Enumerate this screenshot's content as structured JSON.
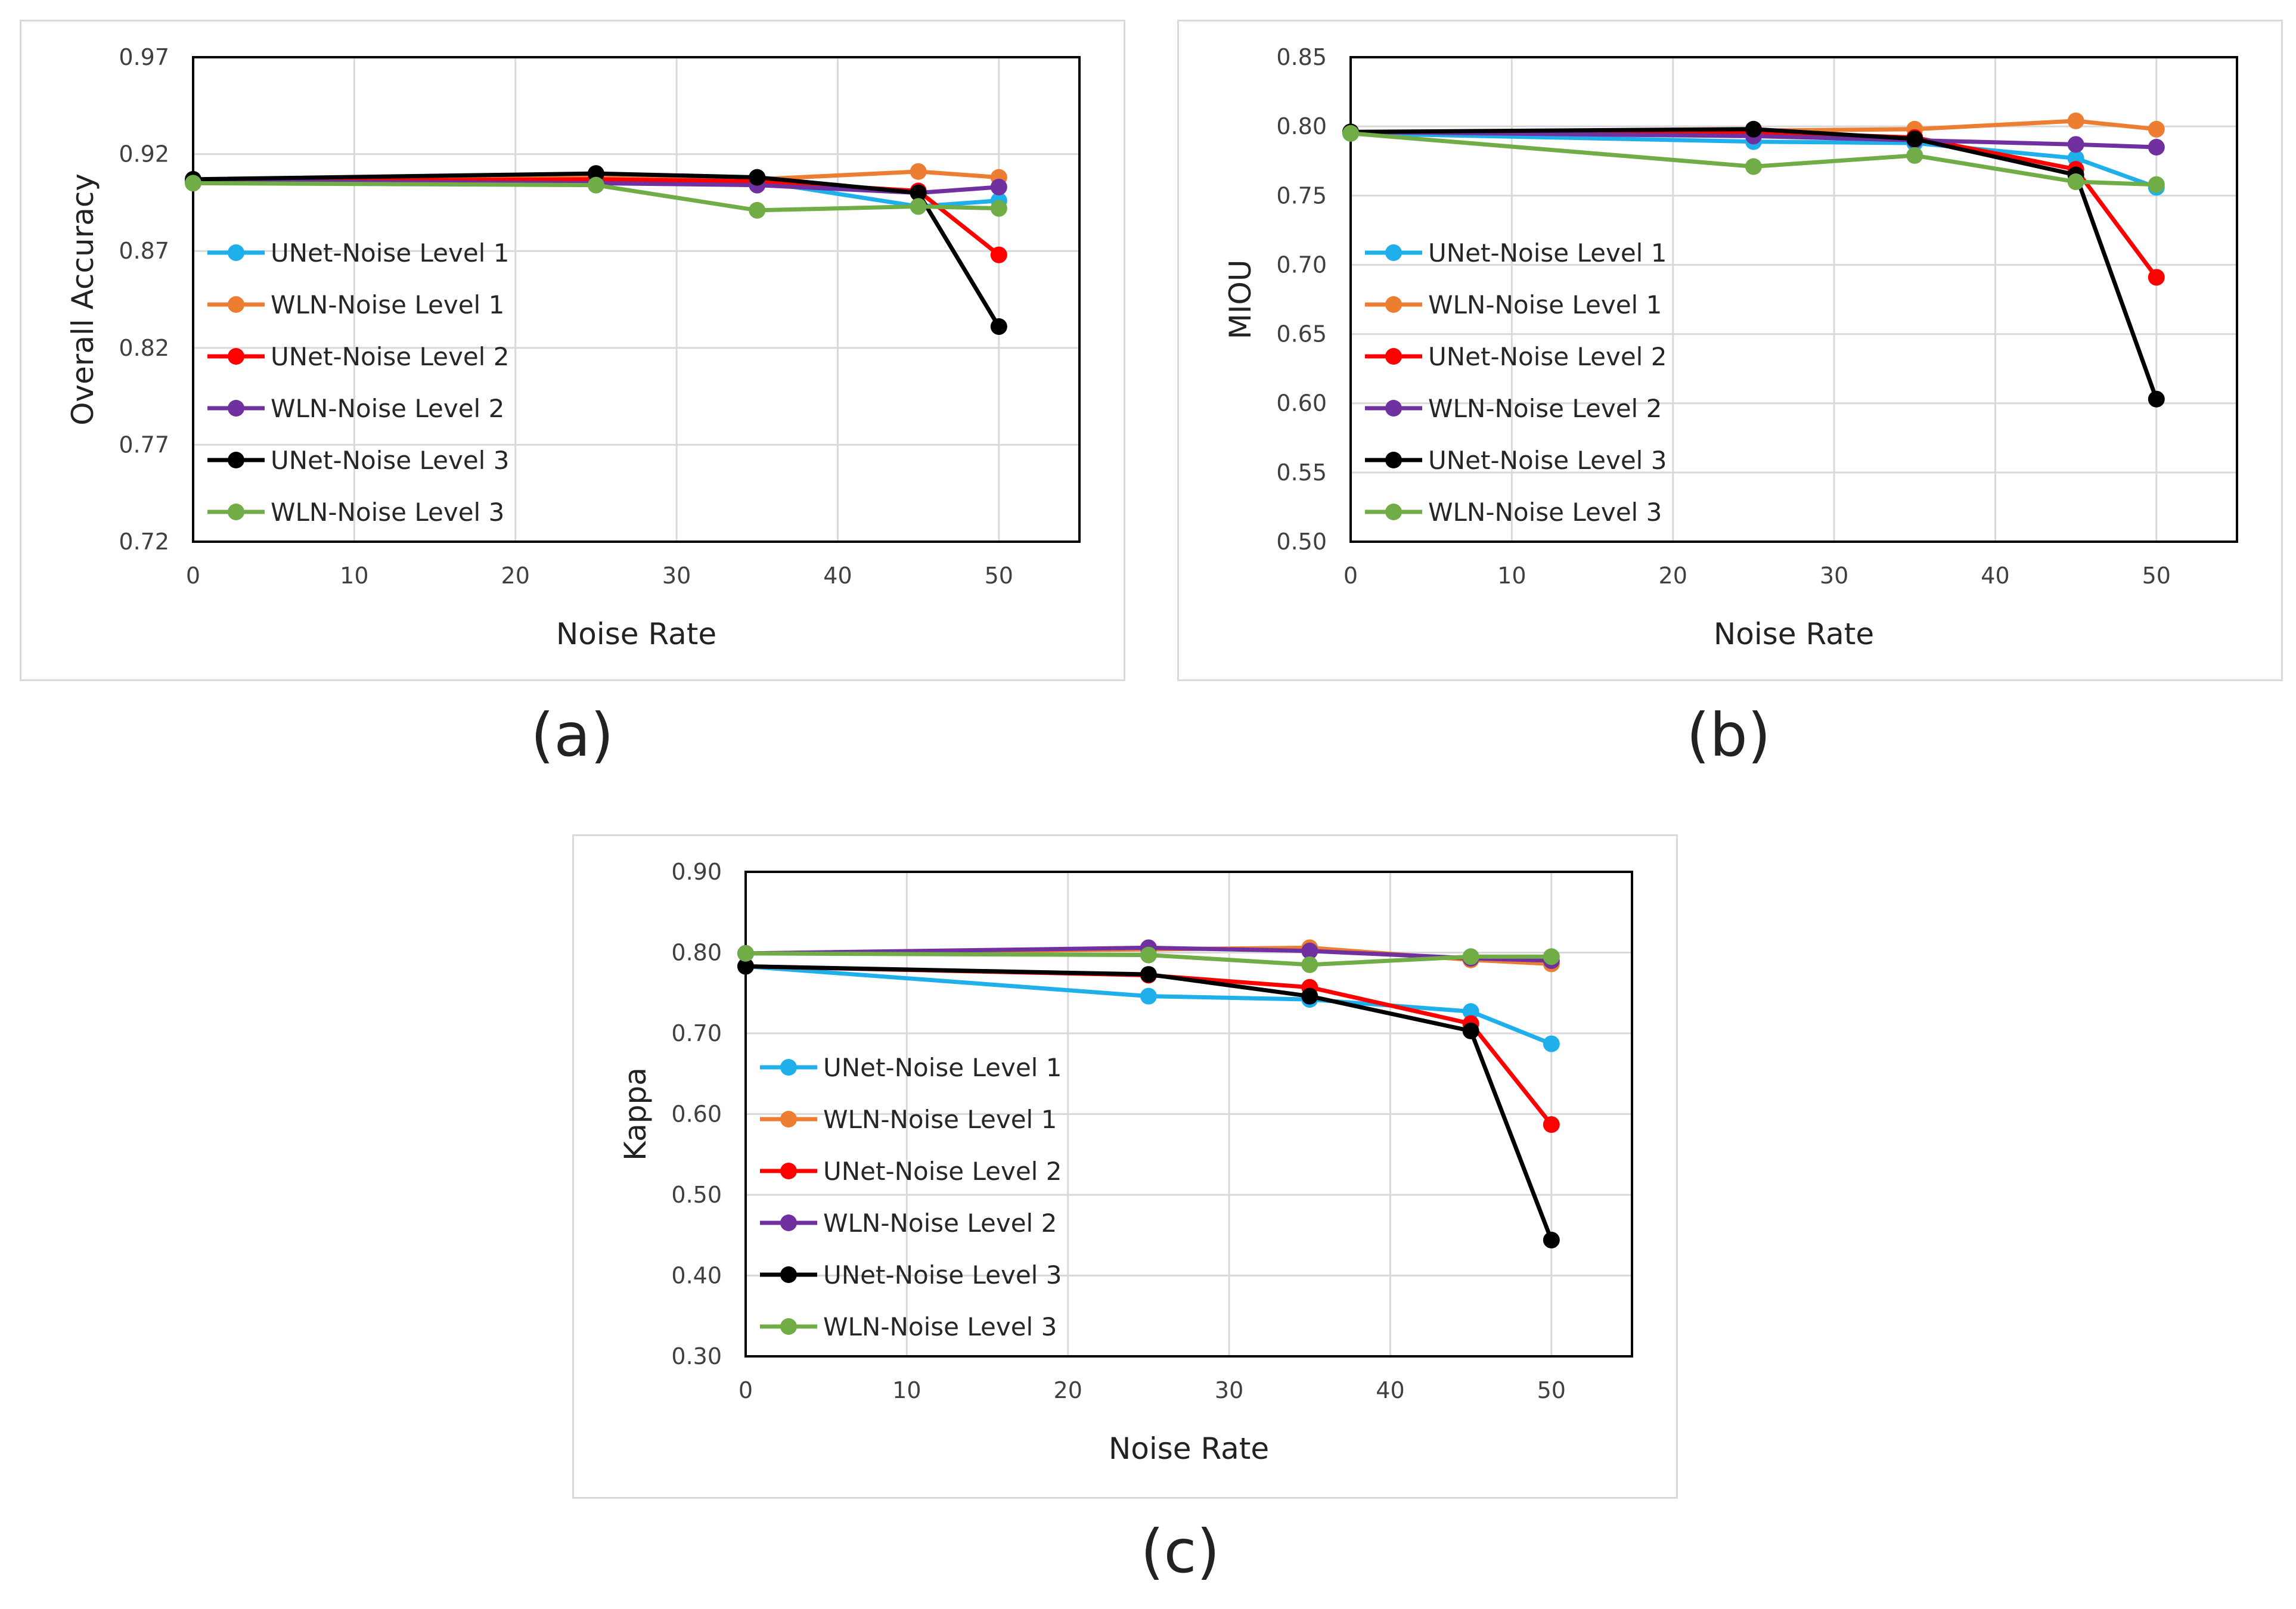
{
  "chart_data": [
    {
      "type": "line",
      "id": "a",
      "caption": "(a)",
      "xlabel": "Noise Rate",
      "ylabel": "Overall Accuracy",
      "xlim": [
        0,
        55
      ],
      "ylim": [
        0.72,
        0.97
      ],
      "xticks": [
        "0",
        "10",
        "20",
        "30",
        "40",
        "50"
      ],
      "yticks": [
        "0.72",
        "0.77",
        "0.82",
        "0.87",
        "0.92",
        "0.97"
      ],
      "grid": true,
      "legend": "left",
      "x": [
        0,
        25,
        35,
        45,
        50
      ],
      "series": [
        {
          "name": "UNet-Noise Level 1",
          "color": "#1fb0ec",
          "values": [
            0.906,
            0.907,
            0.906,
            0.893,
            0.896
          ]
        },
        {
          "name": "WLN-Noise Level 1",
          "color": "#ed7d31",
          "values": [
            0.906,
            0.908,
            0.907,
            0.911,
            0.908
          ]
        },
        {
          "name": "UNet-Noise Level 2",
          "color": "#ff0000",
          "values": [
            0.906,
            0.907,
            0.906,
            0.901,
            0.868
          ]
        },
        {
          "name": "WLN-Noise Level 2",
          "color": "#7030a0",
          "values": [
            0.906,
            0.905,
            0.904,
            0.9,
            0.903
          ]
        },
        {
          "name": "UNet-Noise Level 3",
          "color": "#000000",
          "values": [
            0.907,
            0.91,
            0.908,
            0.9,
            0.831
          ]
        },
        {
          "name": "WLN-Noise Level 3",
          "color": "#70ad47",
          "values": [
            0.905,
            0.904,
            0.891,
            0.893,
            0.892
          ]
        }
      ]
    },
    {
      "type": "line",
      "id": "b",
      "caption": "(b)",
      "xlabel": "Noise Rate",
      "ylabel": "MIOU",
      "xlim": [
        0,
        55
      ],
      "ylim": [
        0.5,
        0.85
      ],
      "xticks": [
        "0",
        "10",
        "20",
        "30",
        "40",
        "50"
      ],
      "yticks": [
        "0.50",
        "0.55",
        "0.60",
        "0.65",
        "0.70",
        "0.75",
        "0.80",
        "0.85"
      ],
      "grid": true,
      "legend": "left",
      "x": [
        0,
        25,
        35,
        45,
        50
      ],
      "series": [
        {
          "name": "UNet-Noise Level 1",
          "color": "#1fb0ec",
          "values": [
            0.795,
            0.789,
            0.788,
            0.777,
            0.756
          ]
        },
        {
          "name": "WLN-Noise Level 1",
          "color": "#ed7d31",
          "values": [
            0.796,
            0.797,
            0.798,
            0.804,
            0.798
          ]
        },
        {
          "name": "UNet-Noise Level 2",
          "color": "#ff0000",
          "values": [
            0.796,
            0.796,
            0.792,
            0.769,
            0.691
          ]
        },
        {
          "name": "WLN-Noise Level 2",
          "color": "#7030a0",
          "values": [
            0.796,
            0.793,
            0.79,
            0.787,
            0.785
          ]
        },
        {
          "name": "UNet-Noise Level 3",
          "color": "#000000",
          "values": [
            0.796,
            0.798,
            0.791,
            0.765,
            0.603
          ]
        },
        {
          "name": "WLN-Noise Level 3",
          "color": "#70ad47",
          "values": [
            0.795,
            0.771,
            0.779,
            0.76,
            0.758
          ]
        }
      ]
    },
    {
      "type": "line",
      "id": "c",
      "caption": "(c)",
      "xlabel": "Noise Rate",
      "ylabel": "Kappa",
      "xlim": [
        0,
        55
      ],
      "ylim": [
        0.3,
        0.9
      ],
      "xticks": [
        "0",
        "10",
        "20",
        "30",
        "40",
        "50"
      ],
      "yticks": [
        "0.30",
        "0.40",
        "0.50",
        "0.60",
        "0.70",
        "0.80",
        "0.90"
      ],
      "grid": true,
      "legend": "left",
      "x": [
        0,
        25,
        35,
        45,
        50
      ],
      "series": [
        {
          "name": "UNet-Noise Level 1",
          "color": "#1fb0ec",
          "values": [
            0.783,
            0.746,
            0.742,
            0.727,
            0.687
          ]
        },
        {
          "name": "WLN-Noise Level 1",
          "color": "#ed7d31",
          "values": [
            0.799,
            0.804,
            0.806,
            0.791,
            0.786
          ]
        },
        {
          "name": "UNet-Noise Level 2",
          "color": "#ff0000",
          "values": [
            0.783,
            0.772,
            0.757,
            0.712,
            0.587
          ]
        },
        {
          "name": "WLN-Noise Level 2",
          "color": "#7030a0",
          "values": [
            0.799,
            0.806,
            0.802,
            0.793,
            0.79
          ]
        },
        {
          "name": "UNet-Noise Level 3",
          "color": "#000000",
          "values": [
            0.783,
            0.773,
            0.746,
            0.703,
            0.444
          ]
        },
        {
          "name": "WLN-Noise Level 3",
          "color": "#70ad47",
          "values": [
            0.799,
            0.797,
            0.785,
            0.795,
            0.795
          ]
        }
      ]
    }
  ]
}
